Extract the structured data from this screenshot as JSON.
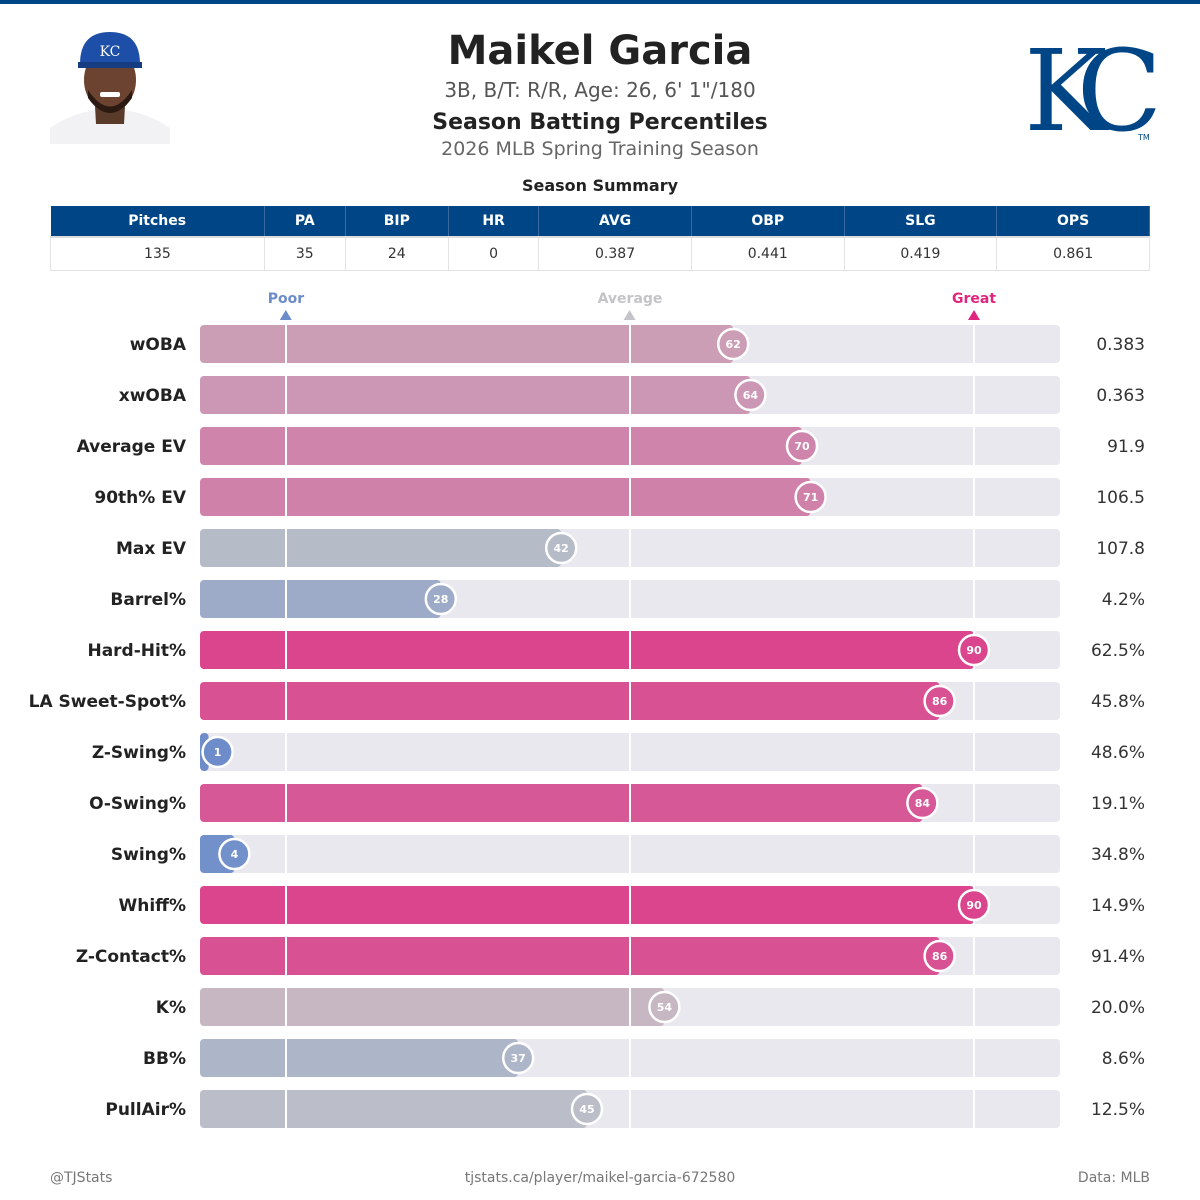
{
  "header": {
    "name": "Maikel Garcia",
    "bio": "3B, B/T: R/R, Age: 26, 6' 1\"/180",
    "title": "Season Batting Percentiles",
    "season": "2026 MLB Spring Training Season",
    "logo_text": "KC",
    "logo_tm": "TM"
  },
  "summary": {
    "title": "Season Summary",
    "columns": [
      "Pitches",
      "PA",
      "BIP",
      "HR",
      "AVG",
      "OBP",
      "SLG",
      "OPS"
    ],
    "values": [
      "135",
      "35",
      "24",
      "0",
      "0.387",
      "0.441",
      "0.419",
      "0.861"
    ]
  },
  "scale": {
    "poor": {
      "label": "Poor",
      "percentile": 10,
      "color": "#6b8bc9"
    },
    "average": {
      "label": "Average",
      "percentile": 50,
      "color": "#c4c4c8"
    },
    "great": {
      "label": "Great",
      "percentile": 90,
      "color": "#e0257f"
    }
  },
  "chart_data": {
    "type": "bar",
    "orientation": "horizontal",
    "xlim": [
      0,
      100
    ],
    "categories": [
      "wOBA",
      "xwOBA",
      "Average EV",
      "90th% EV",
      "Max EV",
      "Barrel%",
      "Hard-Hit%",
      "LA Sweet-Spot%",
      "Z-Swing%",
      "O-Swing%",
      "Swing%",
      "Whiff%",
      "Z-Contact%",
      "K%",
      "BB%",
      "PullAir%"
    ],
    "percentiles": [
      62,
      64,
      70,
      71,
      42,
      28,
      90,
      86,
      1,
      84,
      4,
      90,
      86,
      54,
      37,
      45
    ],
    "stat_values": [
      "0.383",
      "0.363",
      "91.9",
      "106.5",
      "107.8",
      "4.2%",
      "62.5%",
      "45.8%",
      "48.6%",
      "19.1%",
      "34.8%",
      "14.9%",
      "91.4%",
      "20.0%",
      "8.6%",
      "12.5%"
    ],
    "colors": {
      "low": "#6b8bc9",
      "mid": "#c4c4c8",
      "high": "#e0257f",
      "track": "#e8e8ee"
    }
  },
  "footer": {
    "left": "@TJStats",
    "center": "tjstats.ca/player/maikel-garcia-672580",
    "right": "Data: MLB"
  }
}
